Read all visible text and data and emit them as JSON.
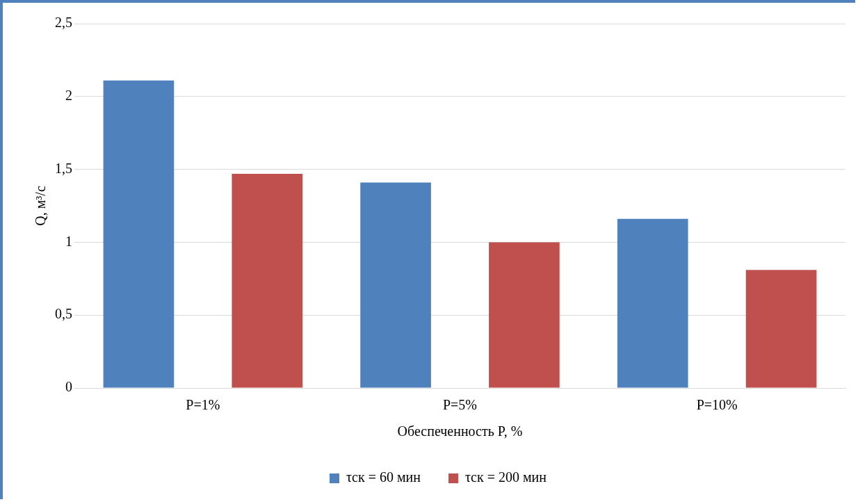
{
  "chart_data": {
    "type": "bar",
    "categories": [
      "P=1%",
      "P=5%",
      "P=10%"
    ],
    "series": [
      {
        "name": "τск = 60 мин",
        "color": "#4f81bd",
        "values": [
          2.11,
          1.41,
          1.16
        ]
      },
      {
        "name": "τск = 200 мин",
        "color": "#c0504d",
        "values": [
          1.47,
          1.0,
          0.81
        ]
      }
    ],
    "xlabel": "Обеспеченность P, %",
    "ylabel": "Q, м³/с",
    "ylim": [
      0,
      2.5
    ],
    "yticks": [
      0,
      {
        "value": 0.5,
        "label": "0,5"
      },
      1,
      {
        "value": 1.5,
        "label": "1,5"
      },
      2,
      {
        "value": 2.5,
        "label": "2,5"
      }
    ],
    "grid": "y",
    "legend": "bottom"
  }
}
